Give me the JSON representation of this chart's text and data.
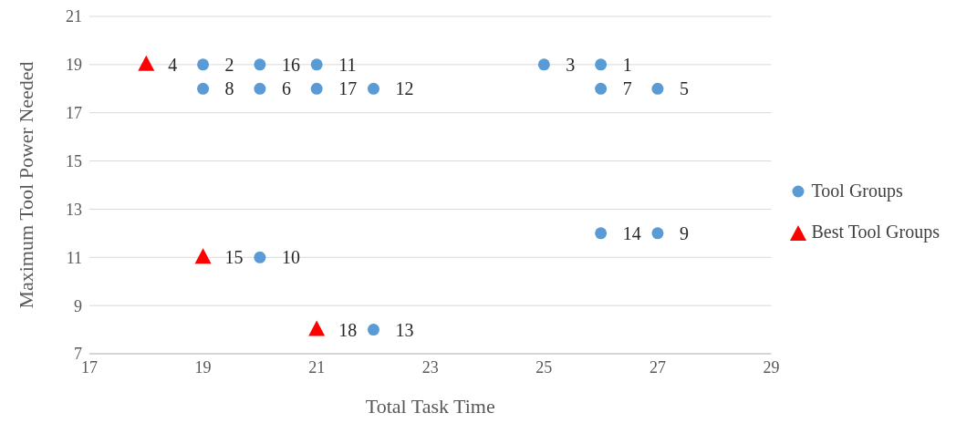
{
  "chart_data": {
    "type": "scatter",
    "xlabel": "Total Task Time",
    "ylabel": "Maximum Tool Power Needed",
    "xlim": [
      17,
      29
    ],
    "xticks": [
      17,
      19,
      21,
      23,
      25,
      27,
      29
    ],
    "ylim": [
      7,
      21
    ],
    "yticks": [
      7,
      9,
      11,
      13,
      15,
      17,
      19,
      21
    ],
    "grid": "y",
    "legend": "right",
    "series": [
      {
        "name": "Tool Groups",
        "color": "#5b9bd5",
        "marker": "circle",
        "x": [
          26,
          19,
          25,
          27,
          20,
          26,
          19,
          27,
          20,
          21,
          22,
          22,
          26,
          20,
          21
        ],
        "values": [
          19,
          19,
          19,
          18,
          18,
          18,
          18,
          12,
          11,
          19,
          18,
          8,
          12,
          19,
          18
        ]
      },
      {
        "name": "Best Tool Groups",
        "color": "#ff0000",
        "marker": "triangle",
        "x": [
          18,
          19,
          21
        ],
        "values": [
          19,
          11,
          8
        ]
      }
    ],
    "annotations": [
      {
        "text": "1",
        "x": 26,
        "y": 19
      },
      {
        "text": "2",
        "x": 19,
        "y": 19
      },
      {
        "text": "3",
        "x": 25,
        "y": 19
      },
      {
        "text": "4",
        "x": 18,
        "y": 19
      },
      {
        "text": "5",
        "x": 27,
        "y": 18
      },
      {
        "text": "6",
        "x": 20,
        "y": 18
      },
      {
        "text": "7",
        "x": 26,
        "y": 18
      },
      {
        "text": "8",
        "x": 19,
        "y": 18
      },
      {
        "text": "9",
        "x": 27,
        "y": 12
      },
      {
        "text": "10",
        "x": 20,
        "y": 11
      },
      {
        "text": "11",
        "x": 21,
        "y": 19
      },
      {
        "text": "12",
        "x": 22,
        "y": 18
      },
      {
        "text": "13",
        "x": 22,
        "y": 8
      },
      {
        "text": "14",
        "x": 26,
        "y": 12
      },
      {
        "text": "15",
        "x": 19,
        "y": 11
      },
      {
        "text": "16",
        "x": 20,
        "y": 19
      },
      {
        "text": "17",
        "x": 21,
        "y": 18
      },
      {
        "text": "18",
        "x": 21,
        "y": 8
      }
    ]
  }
}
